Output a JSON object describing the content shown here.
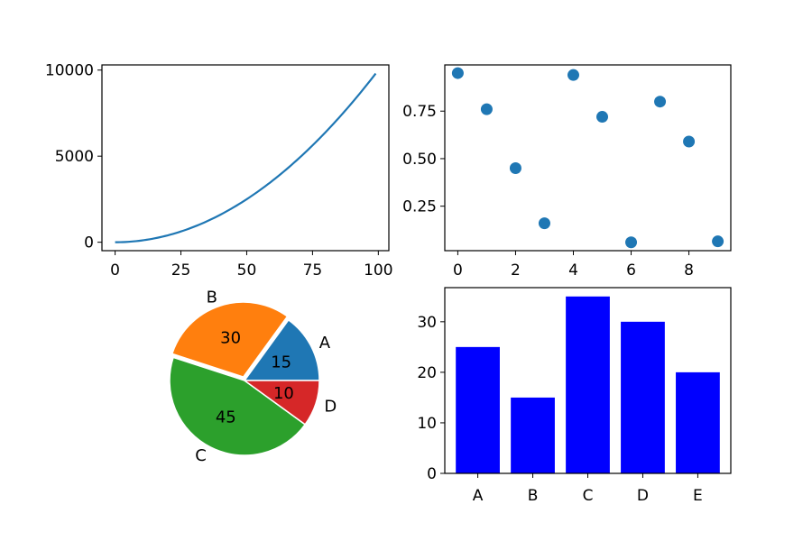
{
  "chart_data": [
    {
      "type": "line",
      "title": "",
      "xlabel": "",
      "ylabel": "",
      "x": [
        0,
        10,
        20,
        30,
        40,
        50,
        60,
        70,
        80,
        90,
        99
      ],
      "y": [
        0,
        100,
        400,
        900,
        1600,
        2500,
        3600,
        4900,
        6400,
        8100,
        9801
      ],
      "xlim": [
        -5,
        104
      ],
      "ylim": [
        -490,
        10300
      ],
      "xticks": [
        0,
        25,
        50,
        75,
        100
      ],
      "yticks": [
        0,
        5000,
        10000
      ],
      "color": "#1f77b4",
      "grid": false
    },
    {
      "type": "scatter",
      "title": "",
      "xlabel": "",
      "ylabel": "",
      "x": [
        0,
        1,
        2,
        3,
        4,
        5,
        6,
        7,
        8,
        9
      ],
      "y": [
        0.95,
        0.76,
        0.45,
        0.16,
        0.94,
        0.72,
        0.06,
        0.8,
        0.59,
        0.065
      ],
      "xlim": [
        -0.45,
        9.45
      ],
      "ylim": [
        0.016,
        0.993
      ],
      "xticks": [
        0,
        2,
        4,
        6,
        8
      ],
      "yticks": [
        0.25,
        0.5,
        0.75
      ],
      "ytick_labels": [
        "0.25",
        "0.50",
        "0.75"
      ],
      "color": "#1f77b4",
      "grid": false
    },
    {
      "type": "pie",
      "title": "",
      "labels": [
        "A",
        "B",
        "C",
        "D"
      ],
      "values": [
        15,
        30,
        45,
        10
      ],
      "colors": [
        "#1f77b4",
        "#ff7f0e",
        "#2ca02c",
        "#d62728"
      ],
      "explode": [
        0,
        0.05,
        0,
        0
      ]
    },
    {
      "type": "bar",
      "title": "",
      "xlabel": "",
      "ylabel": "",
      "categories": [
        "A",
        "B",
        "C",
        "D",
        "E"
      ],
      "values": [
        25,
        15,
        35,
        30,
        20
      ],
      "ylim": [
        0,
        36.75
      ],
      "yticks": [
        0,
        10,
        20,
        30
      ],
      "color": "#0000ff",
      "grid": false
    }
  ]
}
